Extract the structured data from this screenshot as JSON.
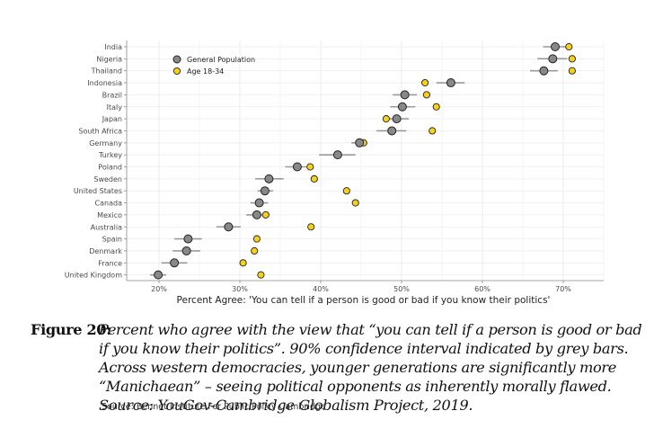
{
  "chart_data": {
    "type": "scatter",
    "xlabel": "Percent Agree: 'You can tell if a person is good or bad if you know their politics'",
    "xlim": [
      16,
      75
    ],
    "xticks": [
      20,
      30,
      40,
      50,
      60,
      70
    ],
    "xtick_labels": [
      "20%",
      "30%",
      "40%",
      "50%",
      "60%",
      "70%"
    ],
    "grid": true,
    "legend_position": "top-left",
    "categories": [
      "India",
      "Nigeria",
      "Thailand",
      "Indonesia",
      "Brazil",
      "Italy",
      "Japan",
      "South Africa",
      "Germany",
      "Turkey",
      "Poland",
      "Sweden",
      "United States",
      "Canada",
      "Mexico",
      "Australia",
      "Spain",
      "Denmark",
      "France",
      "United Kingdom"
    ],
    "series": [
      {
        "name": "General Population",
        "color": "#888888",
        "values": [
          69,
          68.7,
          67.6,
          56.1,
          50.4,
          50.1,
          49.4,
          48.8,
          44.8,
          42.1,
          37.1,
          33.6,
          33.1,
          32.4,
          32.1,
          28.6,
          23.6,
          23.4,
          21.9,
          19.9
        ],
        "ci_low": [
          67.5,
          66.8,
          65.9,
          54.3,
          48.9,
          48.6,
          47.8,
          46.9,
          43.8,
          39.8,
          35.6,
          31.9,
          32.2,
          31.3,
          30.8,
          27.1,
          21.9,
          21.7,
          20.3,
          18.9
        ],
        "ci_high": [
          70.6,
          70.5,
          69.3,
          57.8,
          51.9,
          51.7,
          50.9,
          50.6,
          45.8,
          44.3,
          38.6,
          35.4,
          34.1,
          33.5,
          33.4,
          30.1,
          25.3,
          25.1,
          23.5,
          20.9
        ]
      },
      {
        "name": "Age 18-34",
        "color": "#f7d117",
        "values": [
          70.7,
          71.1,
          71.1,
          52.9,
          53.1,
          54.3,
          48.1,
          53.8,
          45.3,
          42.1,
          38.7,
          39.2,
          43.2,
          44.3,
          33.2,
          38.8,
          32.1,
          31.8,
          30.4,
          32.6
        ]
      }
    ]
  },
  "caption": {
    "label": "Figure 20:",
    "text": "Percent who agree with the view that “you can tell if a person is good or bad if you know their politics”. 90% confidence interval indicated by grey bars. Across western democracies, younger generations are significantly more “Manichaean” – seeing political opponents as inherently morally flawed. Source: YouGov-Cambridge Globalism Project, 2019."
  },
  "source": "Source: Bennet Institute For Public Policy Cambridge"
}
